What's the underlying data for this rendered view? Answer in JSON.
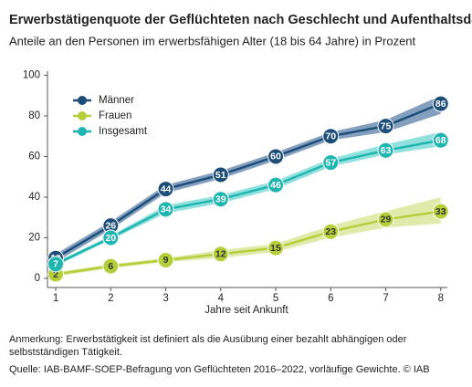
{
  "chart_data": {
    "type": "line",
    "title": "Erwerbstätigenquote der Geflüchteten nach Geschlecht und Aufenthaltsdauer",
    "subtitle": "Anteile an den Personen im erwerbsfähigen Alter (18 bis 64 Jahre) in Prozent",
    "xlabel": "Jahre seit Ankunft",
    "x": [
      1,
      2,
      3,
      4,
      5,
      6,
      7,
      8
    ],
    "xlim": [
      0.85,
      8.12
    ],
    "xticks": [
      1,
      2,
      3,
      4,
      5,
      6,
      7,
      8
    ],
    "ylim": [
      -4.5,
      102
    ],
    "yticks": [
      0,
      20,
      40,
      60,
      80,
      100
    ],
    "legend": "upper left",
    "series": [
      {
        "name": "Männer",
        "color": "#1d4e79",
        "band_color": "#6f8fb3",
        "label_color": "#ffffff",
        "values": [
          10,
          26,
          44,
          51,
          60,
          70,
          75,
          86
        ],
        "lower": [
          8,
          24,
          42,
          49,
          58,
          68,
          72,
          81
        ],
        "upper": [
          12,
          28,
          46,
          53,
          62,
          72,
          78,
          90
        ]
      },
      {
        "name": "Frauen",
        "color": "#b5cf3a",
        "band_color": "#dbe79c",
        "label_color": "#333333",
        "values": [
          2,
          6,
          9,
          12,
          15,
          23,
          29,
          33
        ],
        "lower": [
          1,
          5,
          8,
          10,
          13,
          20,
          25,
          27
        ],
        "upper": [
          3,
          7,
          10,
          14,
          17,
          26,
          33,
          40
        ]
      },
      {
        "name": "Insgesamt",
        "color": "#1fb5b0",
        "band_color": "#7fdcd8",
        "label_color": "#ffffff",
        "values": [
          7,
          20,
          34,
          39,
          46,
          57,
          63,
          68
        ],
        "lower": [
          6,
          19,
          32,
          37,
          44,
          55,
          61,
          65
        ],
        "upper": [
          8,
          21,
          36,
          41,
          48,
          59,
          66,
          72
        ]
      }
    ],
    "note": "Anmerkung: Erwerbstätigkeit ist definiert als die Ausübung einer bezahlt abhängigen oder selbstständigen Tätigkeit.",
    "source": "Quelle: IAB-BAMF-SOEP-Befragung von Geflüchteten 2016–2022, vorläufige Gewichte.  © IAB"
  }
}
